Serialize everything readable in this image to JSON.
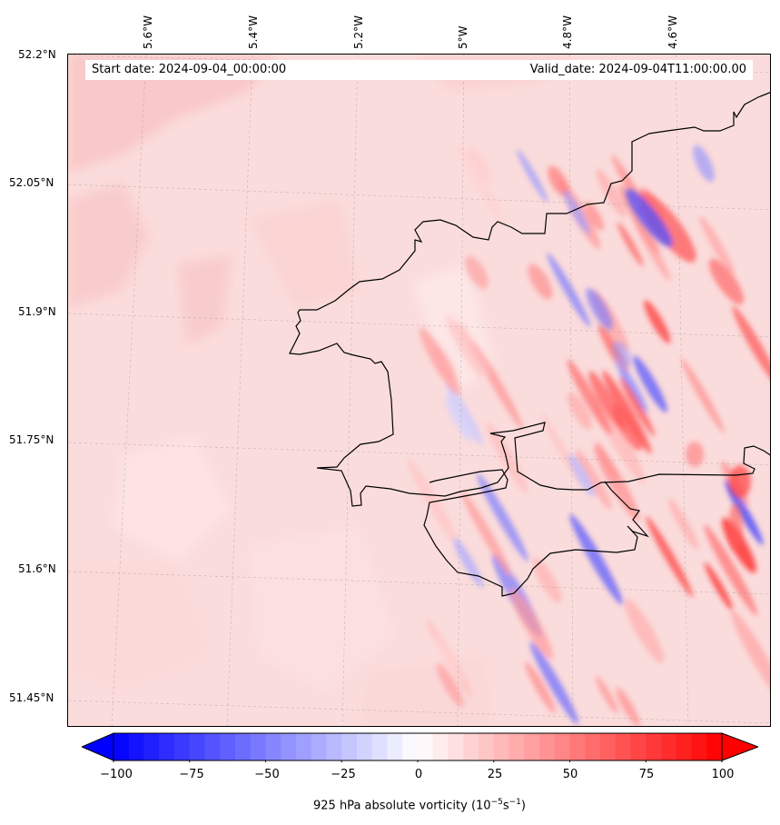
{
  "map": {
    "start_date": "Start date: 2024-09-04_00:00:00",
    "valid_date": "Valid_date: 2024-09-04T11:00:00.00",
    "lat_labels": [
      "52.2°N",
      "52.05°N",
      "51.9°N",
      "51.75°N",
      "51.6°N",
      "51.45°N"
    ],
    "lon_labels": [
      "5.6°W",
      "5.4°W",
      "5.2°W",
      "5°W",
      "4.8°W",
      "4.6°W"
    ],
    "colors": {
      "min": "#0000ff",
      "mid": "#ffffff",
      "max": "#ff0000",
      "coast": "#000000"
    },
    "field": "925 hPa absolute vorticity",
    "range": [
      -100,
      100
    ]
  },
  "colorbar": {
    "ticks": [
      "−100",
      "−75",
      "−50",
      "−25",
      "0",
      "25",
      "50",
      "75",
      "100"
    ],
    "tick_values": [
      -100,
      -75,
      -50,
      -25,
      0,
      25,
      50,
      75,
      100
    ],
    "label_prefix": "925 hPa absolute vorticity (10",
    "label_exp1": "−5",
    "label_mid": "s",
    "label_exp2": "−1",
    "label_suffix": ")"
  }
}
